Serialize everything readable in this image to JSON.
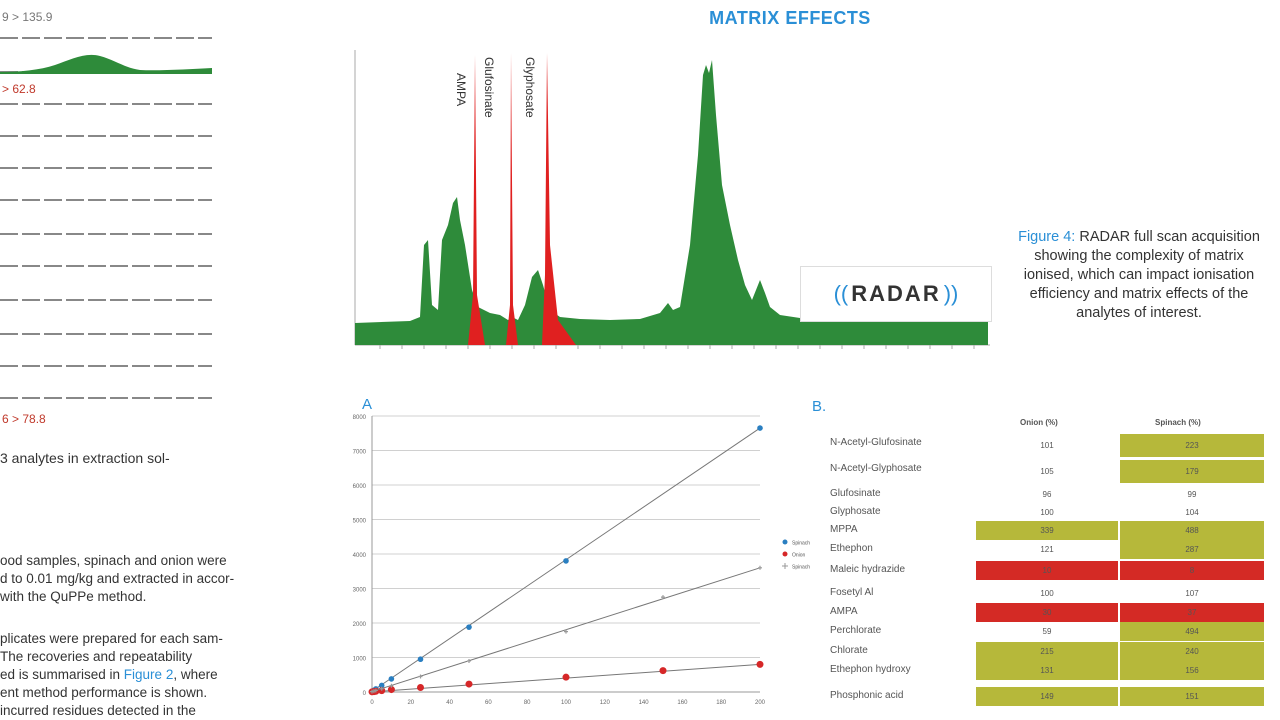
{
  "left": {
    "trace_label_top": "9 > 135.9",
    "trace_label_mid": "> 62.8",
    "trace_label_bottom": "6 > 78.8",
    "caption_line": "3 analytes in extraction sol-",
    "paragraph1": [
      "ood samples, spinach and onion were",
      "d to 0.01 mg/kg and extracted in accor-",
      " with the QuPPe method."
    ],
    "paragraph2_lines": [
      "plicates were prepared for each sam-",
      "  The  recoveries  and  repeatability",
      "ed is summarised in ",
      "ent method performance is shown.",
      "  incurred residues detected in the"
    ],
    "paragraph2_link": "Figure 2",
    "paragraph2_after_link": ", where",
    "colors": {
      "trace_green": "#2e8b3a",
      "trace_red_label": "#c0392b",
      "axis_dash": "#888888"
    }
  },
  "header": {
    "title": "MATRIX EFFECTS"
  },
  "figure4": {
    "label": "Figure 4:",
    "text": "RADAR full scan acquisition showing the complexity of matrix ionised, which can impact ionisation efficiency and matrix effects of the analytes of interest."
  },
  "radar_logo": {
    "text": "RADAR"
  },
  "chromatogram": {
    "peak_labels": [
      "AMPA",
      "Glufosinate",
      "Glyphosate"
    ],
    "colors": {
      "matrix": "#2e8b3a",
      "analyte": "#e02020"
    }
  },
  "panel_a": {
    "label": "A"
  },
  "panel_b": {
    "label": "B."
  },
  "chart_data": {
    "type": "scatter",
    "title": "",
    "xlabel": "",
    "ylabel": "",
    "x_ticks": [
      "0",
      "20",
      "40",
      "60",
      "80",
      "100",
      "120",
      "140",
      "160",
      "180",
      "200"
    ],
    "y_ticks": [
      "0",
      "1000",
      "2000",
      "3000",
      "4000",
      "5000",
      "6000",
      "7000",
      "8000"
    ],
    "xlim": [
      0,
      200
    ],
    "ylim": [
      0,
      8000
    ],
    "grid": true,
    "legend_position": "right",
    "series": [
      {
        "name": "Spinach",
        "color": "#2a7fc1",
        "marker": "circle",
        "x": [
          0,
          1,
          2,
          5,
          10,
          25,
          50,
          100,
          200
        ],
        "y": [
          20,
          50,
          90,
          190,
          380,
          950,
          1880,
          3800,
          7650
        ]
      },
      {
        "name": "Onion",
        "color": "#d62728",
        "marker": "circle",
        "x": [
          0,
          1,
          2,
          5,
          10,
          25,
          50,
          100,
          150,
          200
        ],
        "y": [
          5,
          10,
          20,
          40,
          70,
          130,
          230,
          430,
          620,
          800
        ]
      },
      {
        "name": "Spinach",
        "color": "#999999",
        "marker": "cross",
        "x": [
          0,
          1,
          2,
          5,
          10,
          25,
          50,
          100,
          150,
          200
        ],
        "y": [
          10,
          25,
          45,
          95,
          180,
          450,
          900,
          1750,
          2750,
          3600
        ]
      }
    ]
  },
  "table_b": {
    "headers": [
      "Onion (%)",
      "Spinach (%)"
    ],
    "rows": [
      {
        "name": "N-Acetyl-Glufosinate",
        "onion": "101",
        "spinach": "223",
        "onion_hl": "",
        "spinach_hl": "y"
      },
      {
        "name": "N-Acetyl-Glyphosate",
        "onion": "105",
        "spinach": "179",
        "onion_hl": "",
        "spinach_hl": "y"
      },
      {
        "name": "Glufosinate",
        "onion": "96",
        "spinach": "99",
        "onion_hl": "",
        "spinach_hl": ""
      },
      {
        "name": "Glyphosate",
        "onion": "100",
        "spinach": "104",
        "onion_hl": "",
        "spinach_hl": ""
      },
      {
        "name": "MPPA",
        "onion": "339",
        "spinach": "488",
        "onion_hl": "y",
        "spinach_hl": "y"
      },
      {
        "name": "Ethephon",
        "onion": "121",
        "spinach": "287",
        "onion_hl": "",
        "spinach_hl": "y"
      },
      {
        "name": "Maleic hydrazide",
        "onion": "10",
        "spinach": "8",
        "onion_hl": "r",
        "spinach_hl": "r"
      },
      {
        "name": "Fosetyl Al",
        "onion": "100",
        "spinach": "107",
        "onion_hl": "",
        "spinach_hl": ""
      },
      {
        "name": "AMPA",
        "onion": "30",
        "spinach": "37",
        "onion_hl": "r",
        "spinach_hl": "r"
      },
      {
        "name": "Perchlorate",
        "onion": "59",
        "spinach": "494",
        "onion_hl": "",
        "spinach_hl": "y"
      },
      {
        "name": "Chlorate",
        "onion": "215",
        "spinach": "240",
        "onion_hl": "y",
        "spinach_hl": "y"
      },
      {
        "name": "Ethephon hydroxy",
        "onion": "131",
        "spinach": "156",
        "onion_hl": "y",
        "spinach_hl": "y"
      },
      {
        "name": "Phosphonic acid",
        "onion": "149",
        "spinach": "151",
        "onion_hl": "y",
        "spinach_hl": "y"
      }
    ]
  }
}
